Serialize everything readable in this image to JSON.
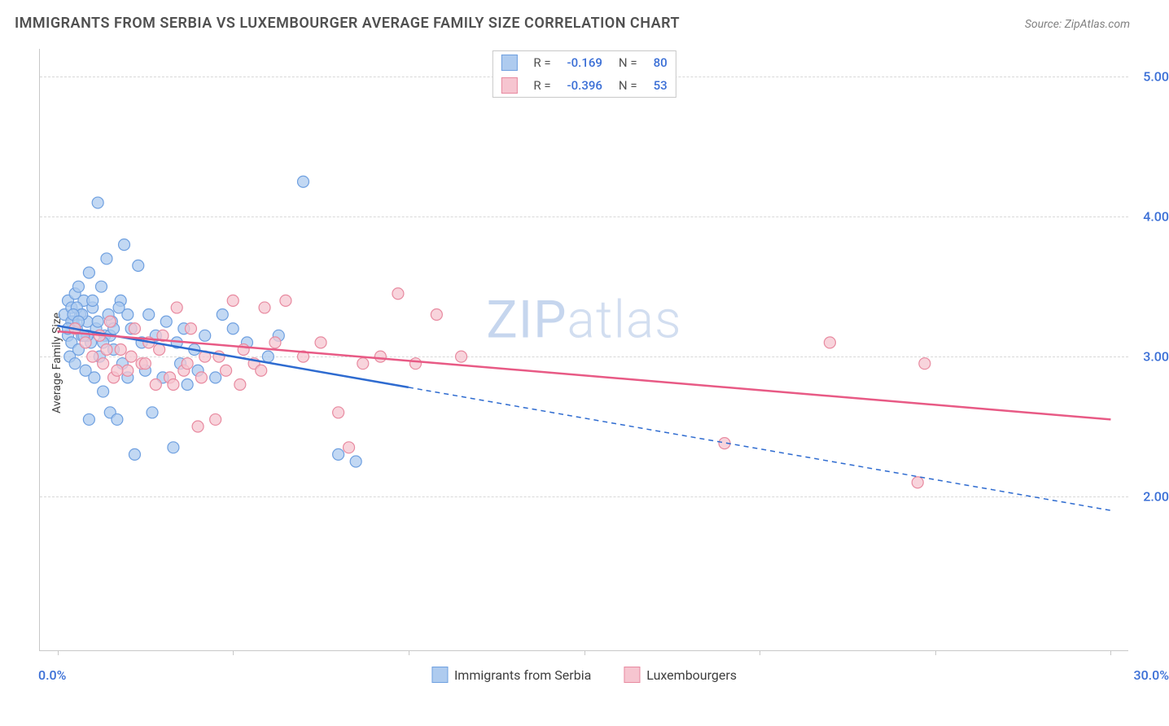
{
  "title": "IMMIGRANTS FROM SERBIA VS LUXEMBOURGER AVERAGE FAMILY SIZE CORRELATION CHART",
  "source_label": "Source: ZipAtlas.com",
  "watermark_bold": "ZIP",
  "watermark_thin": "atlas",
  "y_axis": {
    "label": "Average Family Size",
    "min": 0.9,
    "max": 5.2,
    "ticks": [
      2.0,
      3.0,
      4.0,
      5.0
    ],
    "tick_labels": [
      "2.00",
      "3.00",
      "4.00",
      "5.00"
    ]
  },
  "x_axis": {
    "min": -0.5,
    "max": 30.5,
    "label_left": "0.0%",
    "label_right": "30.0%",
    "tick_positions": [
      0,
      5,
      10,
      15,
      20,
      25,
      30
    ]
  },
  "series": [
    {
      "name": "Immigrants from Serbia",
      "fill": "#aecbef",
      "stroke": "#6fa0e0",
      "line_color": "#2e6bd0",
      "r_value": "-0.169",
      "n_value": "80",
      "trend": {
        "x1": 0,
        "y1": 3.22,
        "x2_solid": 10,
        "y2_solid": 2.78,
        "x2_dash": 30,
        "y2_dash": 1.9
      },
      "points": [
        [
          0.2,
          3.3
        ],
        [
          0.3,
          3.15
        ],
        [
          0.3,
          3.4
        ],
        [
          0.35,
          3.0
        ],
        [
          0.4,
          3.35
        ],
        [
          0.4,
          3.1
        ],
        [
          0.45,
          3.25
        ],
        [
          0.5,
          3.45
        ],
        [
          0.5,
          2.95
        ],
        [
          0.55,
          3.2
        ],
        [
          0.6,
          3.5
        ],
        [
          0.6,
          3.05
        ],
        [
          0.65,
          3.3
        ],
        [
          0.7,
          3.15
        ],
        [
          0.75,
          3.4
        ],
        [
          0.8,
          2.9
        ],
        [
          0.85,
          3.25
        ],
        [
          0.9,
          3.6
        ],
        [
          0.95,
          3.1
        ],
        [
          1.0,
          3.35
        ],
        [
          1.05,
          2.85
        ],
        [
          1.1,
          3.2
        ],
        [
          1.15,
          4.1
        ],
        [
          1.2,
          3.0
        ],
        [
          1.25,
          3.5
        ],
        [
          1.3,
          2.75
        ],
        [
          1.35,
          3.15
        ],
        [
          1.4,
          3.7
        ],
        [
          1.5,
          2.6
        ],
        [
          1.55,
          3.25
        ],
        [
          1.6,
          3.05
        ],
        [
          1.7,
          2.55
        ],
        [
          1.8,
          3.4
        ],
        [
          1.85,
          2.95
        ],
        [
          1.9,
          3.8
        ],
        [
          2.0,
          2.85
        ],
        [
          2.1,
          3.2
        ],
        [
          2.2,
          2.3
        ],
        [
          2.3,
          3.65
        ],
        [
          2.4,
          3.1
        ],
        [
          2.5,
          2.9
        ],
        [
          2.6,
          3.3
        ],
        [
          2.7,
          2.6
        ],
        [
          2.8,
          3.15
        ],
        [
          3.0,
          2.85
        ],
        [
          3.1,
          3.25
        ],
        [
          3.3,
          2.35
        ],
        [
          3.4,
          3.1
        ],
        [
          3.5,
          2.95
        ],
        [
          3.6,
          3.2
        ],
        [
          3.7,
          2.8
        ],
        [
          3.9,
          3.05
        ],
        [
          4.0,
          2.9
        ],
        [
          4.2,
          3.15
        ],
        [
          4.5,
          2.85
        ],
        [
          4.7,
          3.3
        ],
        [
          5.0,
          3.2
        ],
        [
          5.4,
          3.1
        ],
        [
          6.0,
          3.0
        ],
        [
          6.3,
          3.15
        ],
        [
          7.0,
          4.25
        ],
        [
          8.0,
          2.3
        ],
        [
          8.5,
          2.25
        ],
        [
          0.9,
          2.55
        ],
        [
          1.5,
          3.15
        ],
        [
          2.0,
          3.3
        ],
        [
          0.4,
          3.25
        ],
        [
          0.55,
          3.35
        ],
        [
          0.7,
          3.3
        ],
        [
          0.85,
          3.15
        ],
        [
          1.0,
          3.4
        ],
        [
          1.15,
          3.25
        ],
        [
          1.3,
          3.1
        ],
        [
          1.45,
          3.3
        ],
        [
          1.6,
          3.2
        ],
        [
          1.75,
          3.35
        ],
        [
          0.3,
          3.2
        ],
        [
          0.45,
          3.3
        ],
        [
          0.6,
          3.25
        ],
        [
          0.75,
          3.15
        ]
      ]
    },
    {
      "name": "Luxembourgers",
      "fill": "#f6c5d0",
      "stroke": "#e88aa0",
      "line_color": "#e85a85",
      "r_value": "-0.396",
      "n_value": "53",
      "trend": {
        "x1": 0,
        "y1": 3.18,
        "x2_solid": 30,
        "y2_solid": 2.55,
        "x2_dash": 30,
        "y2_dash": 2.55
      },
      "points": [
        [
          0.5,
          3.2
        ],
        [
          0.8,
          3.1
        ],
        [
          1.0,
          3.0
        ],
        [
          1.2,
          3.15
        ],
        [
          1.3,
          2.95
        ],
        [
          1.5,
          3.25
        ],
        [
          1.6,
          2.85
        ],
        [
          1.8,
          3.05
        ],
        [
          2.0,
          2.9
        ],
        [
          2.2,
          3.2
        ],
        [
          2.4,
          2.95
        ],
        [
          2.6,
          3.1
        ],
        [
          2.8,
          2.8
        ],
        [
          3.0,
          3.15
        ],
        [
          3.2,
          2.85
        ],
        [
          3.4,
          3.35
        ],
        [
          3.6,
          2.9
        ],
        [
          3.8,
          3.2
        ],
        [
          4.0,
          2.5
        ],
        [
          4.2,
          3.0
        ],
        [
          4.5,
          2.55
        ],
        [
          4.8,
          2.9
        ],
        [
          5.0,
          3.4
        ],
        [
          5.3,
          3.05
        ],
        [
          5.6,
          2.95
        ],
        [
          5.9,
          3.35
        ],
        [
          6.2,
          3.1
        ],
        [
          6.5,
          3.4
        ],
        [
          7.0,
          3.0
        ],
        [
          7.5,
          3.1
        ],
        [
          8.0,
          2.6
        ],
        [
          8.3,
          2.35
        ],
        [
          8.7,
          2.95
        ],
        [
          9.2,
          3.0
        ],
        [
          9.7,
          3.45
        ],
        [
          10.2,
          2.95
        ],
        [
          10.8,
          3.3
        ],
        [
          11.5,
          3.0
        ],
        [
          19.0,
          2.38
        ],
        [
          22.0,
          3.1
        ],
        [
          24.5,
          2.1
        ],
        [
          24.7,
          2.95
        ],
        [
          1.4,
          3.05
        ],
        [
          1.7,
          2.9
        ],
        [
          2.1,
          3.0
        ],
        [
          2.5,
          2.95
        ],
        [
          2.9,
          3.05
        ],
        [
          3.3,
          2.8
        ],
        [
          3.7,
          2.95
        ],
        [
          4.1,
          2.85
        ],
        [
          4.6,
          3.0
        ],
        [
          5.2,
          2.8
        ],
        [
          5.8,
          2.9
        ]
      ]
    }
  ],
  "top_legend_labels": {
    "r": "R =",
    "n": "N ="
  },
  "marker_radius": 7,
  "marker_stroke_width": 1.2,
  "trend_stroke_width": 2.5,
  "grid_color": "#d8d8d8"
}
